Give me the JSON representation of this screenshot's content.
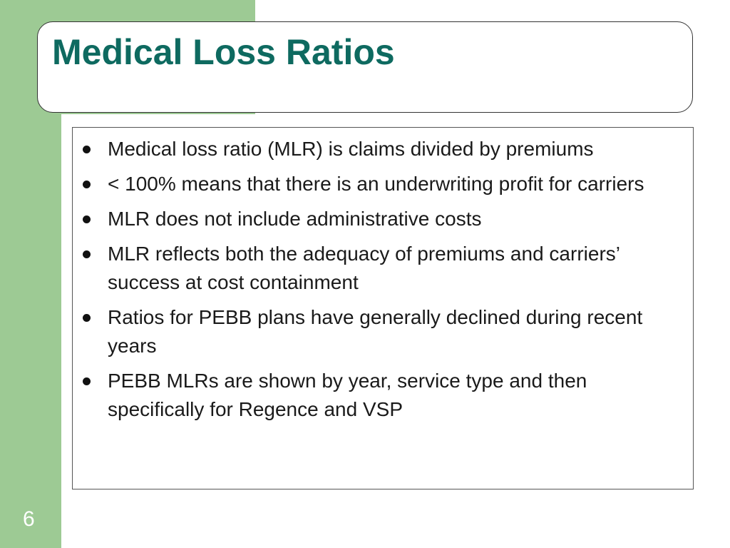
{
  "slide": {
    "title": "Medical Loss Ratios",
    "bullets": [
      "Medical loss ratio (MLR) is claims divided by premiums",
      "< 100% means that there is an underwriting profit for carriers",
      "MLR does not include administrative costs",
      "MLR reflects both the adequacy of premiums and carriers’ success at cost containment",
      "Ratios for PEBB plans have generally declined during recent years",
      "PEBB MLRs are shown by year, service type and then specifically for Regence and VSP"
    ],
    "page_number": "6"
  },
  "colors": {
    "accent_green": "#9dca94",
    "title_teal": "#0e6a60",
    "text": "#1a1a1a"
  }
}
